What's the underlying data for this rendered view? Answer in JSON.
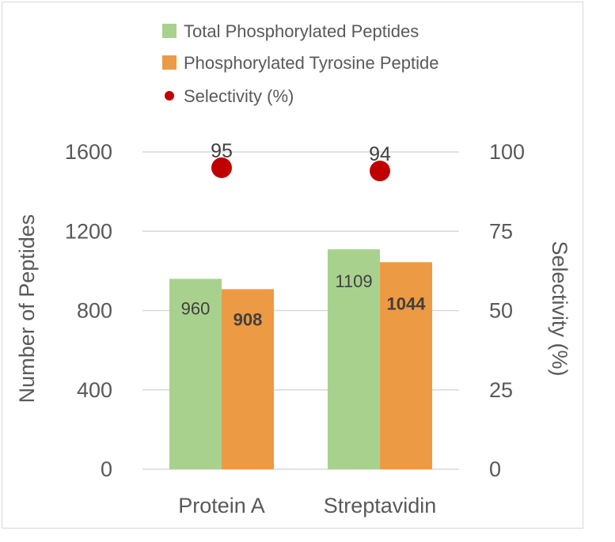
{
  "chart_data": {
    "type": "bar",
    "categories": [
      "Protein A",
      "Streptavidin"
    ],
    "series": [
      {
        "name": "Total Phosphorylated Peptides",
        "type": "bar",
        "axis": "left",
        "color": "#a9d18e",
        "values": [
          960,
          1109
        ],
        "labels": [
          "960",
          "1109"
        ]
      },
      {
        "name": "Phosphorylated Tyrosine Peptide",
        "type": "bar",
        "axis": "left",
        "color": "#ed9a44",
        "values": [
          908,
          1044
        ],
        "labels": [
          "908",
          "1044"
        ]
      },
      {
        "name": "Selectivity (%)",
        "type": "scatter",
        "axis": "right",
        "color": "#c00000",
        "values": [
          95,
          94
        ],
        "labels": [
          "95",
          "94"
        ]
      }
    ],
    "ylabel": "Number of Peptides",
    "y2label": "Selectivity (%)",
    "ylim": [
      0,
      1600
    ],
    "y2lim": [
      0,
      100
    ],
    "yticks": [
      "0",
      "400",
      "800",
      "1200",
      "1600"
    ],
    "y2ticks": [
      "0",
      "25",
      "50",
      "75",
      "100"
    ],
    "grid": true,
    "legend_position": "top"
  }
}
